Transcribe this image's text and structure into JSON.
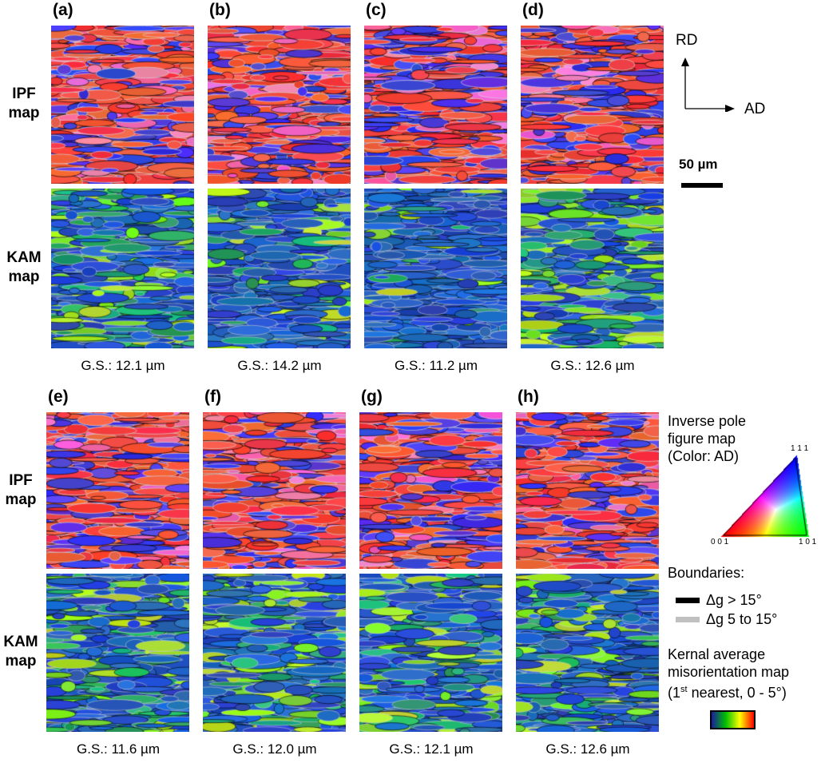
{
  "row_labels": {
    "ipf": [
      "IPF",
      "map"
    ],
    "kam": [
      "KAM",
      "map"
    ]
  },
  "panels": [
    {
      "label": "(a)",
      "gs": "G.S.: 12.1 µm",
      "kam_level": 0.55
    },
    {
      "label": "(b)",
      "gs": "G.S.: 14.2 µm",
      "kam_level": 0.25
    },
    {
      "label": "(c)",
      "gs": "G.S.: 11.2 µm",
      "kam_level": 0.15
    },
    {
      "label": "(d)",
      "gs": "G.S.: 12.6 µm",
      "kam_level": 0.6
    },
    {
      "label": "(e)",
      "gs": "G.S.: 11.6 µm",
      "kam_level": 0.55
    },
    {
      "label": "(f)",
      "gs": "G.S.: 12.0 µm",
      "kam_level": 0.5
    },
    {
      "label": "(g)",
      "gs": "G.S.: 12.1 µm",
      "kam_level": 0.45
    },
    {
      "label": "(h)",
      "gs": "G.S.: 12.6 µm",
      "kam_level": 0.5
    }
  ],
  "axes": {
    "rd": "RD",
    "ad": "AD"
  },
  "scale_bar": "50 µm",
  "ipf_legend": {
    "title": [
      "Inverse pole",
      "figure map",
      "(Color: AD)"
    ],
    "corners": [
      "0 0 1",
      "1 0 1",
      "1 1 1"
    ]
  },
  "boundaries": {
    "title": "Boundaries:",
    "high": "Δg > 15°",
    "low": "Δg 5 to 15°",
    "high_color": "#000000",
    "low_color": "#c0c0c0"
  },
  "kam_legend": {
    "line1": "Kernal average",
    "line2": "misorientation map",
    "line3_pre": "(1",
    "line3_sup": "st",
    "line3_post": " nearest, 0 - 5°)",
    "colors": [
      "#1a1aa0",
      "#00c000",
      "#ffff00",
      "#ff0000"
    ]
  }
}
